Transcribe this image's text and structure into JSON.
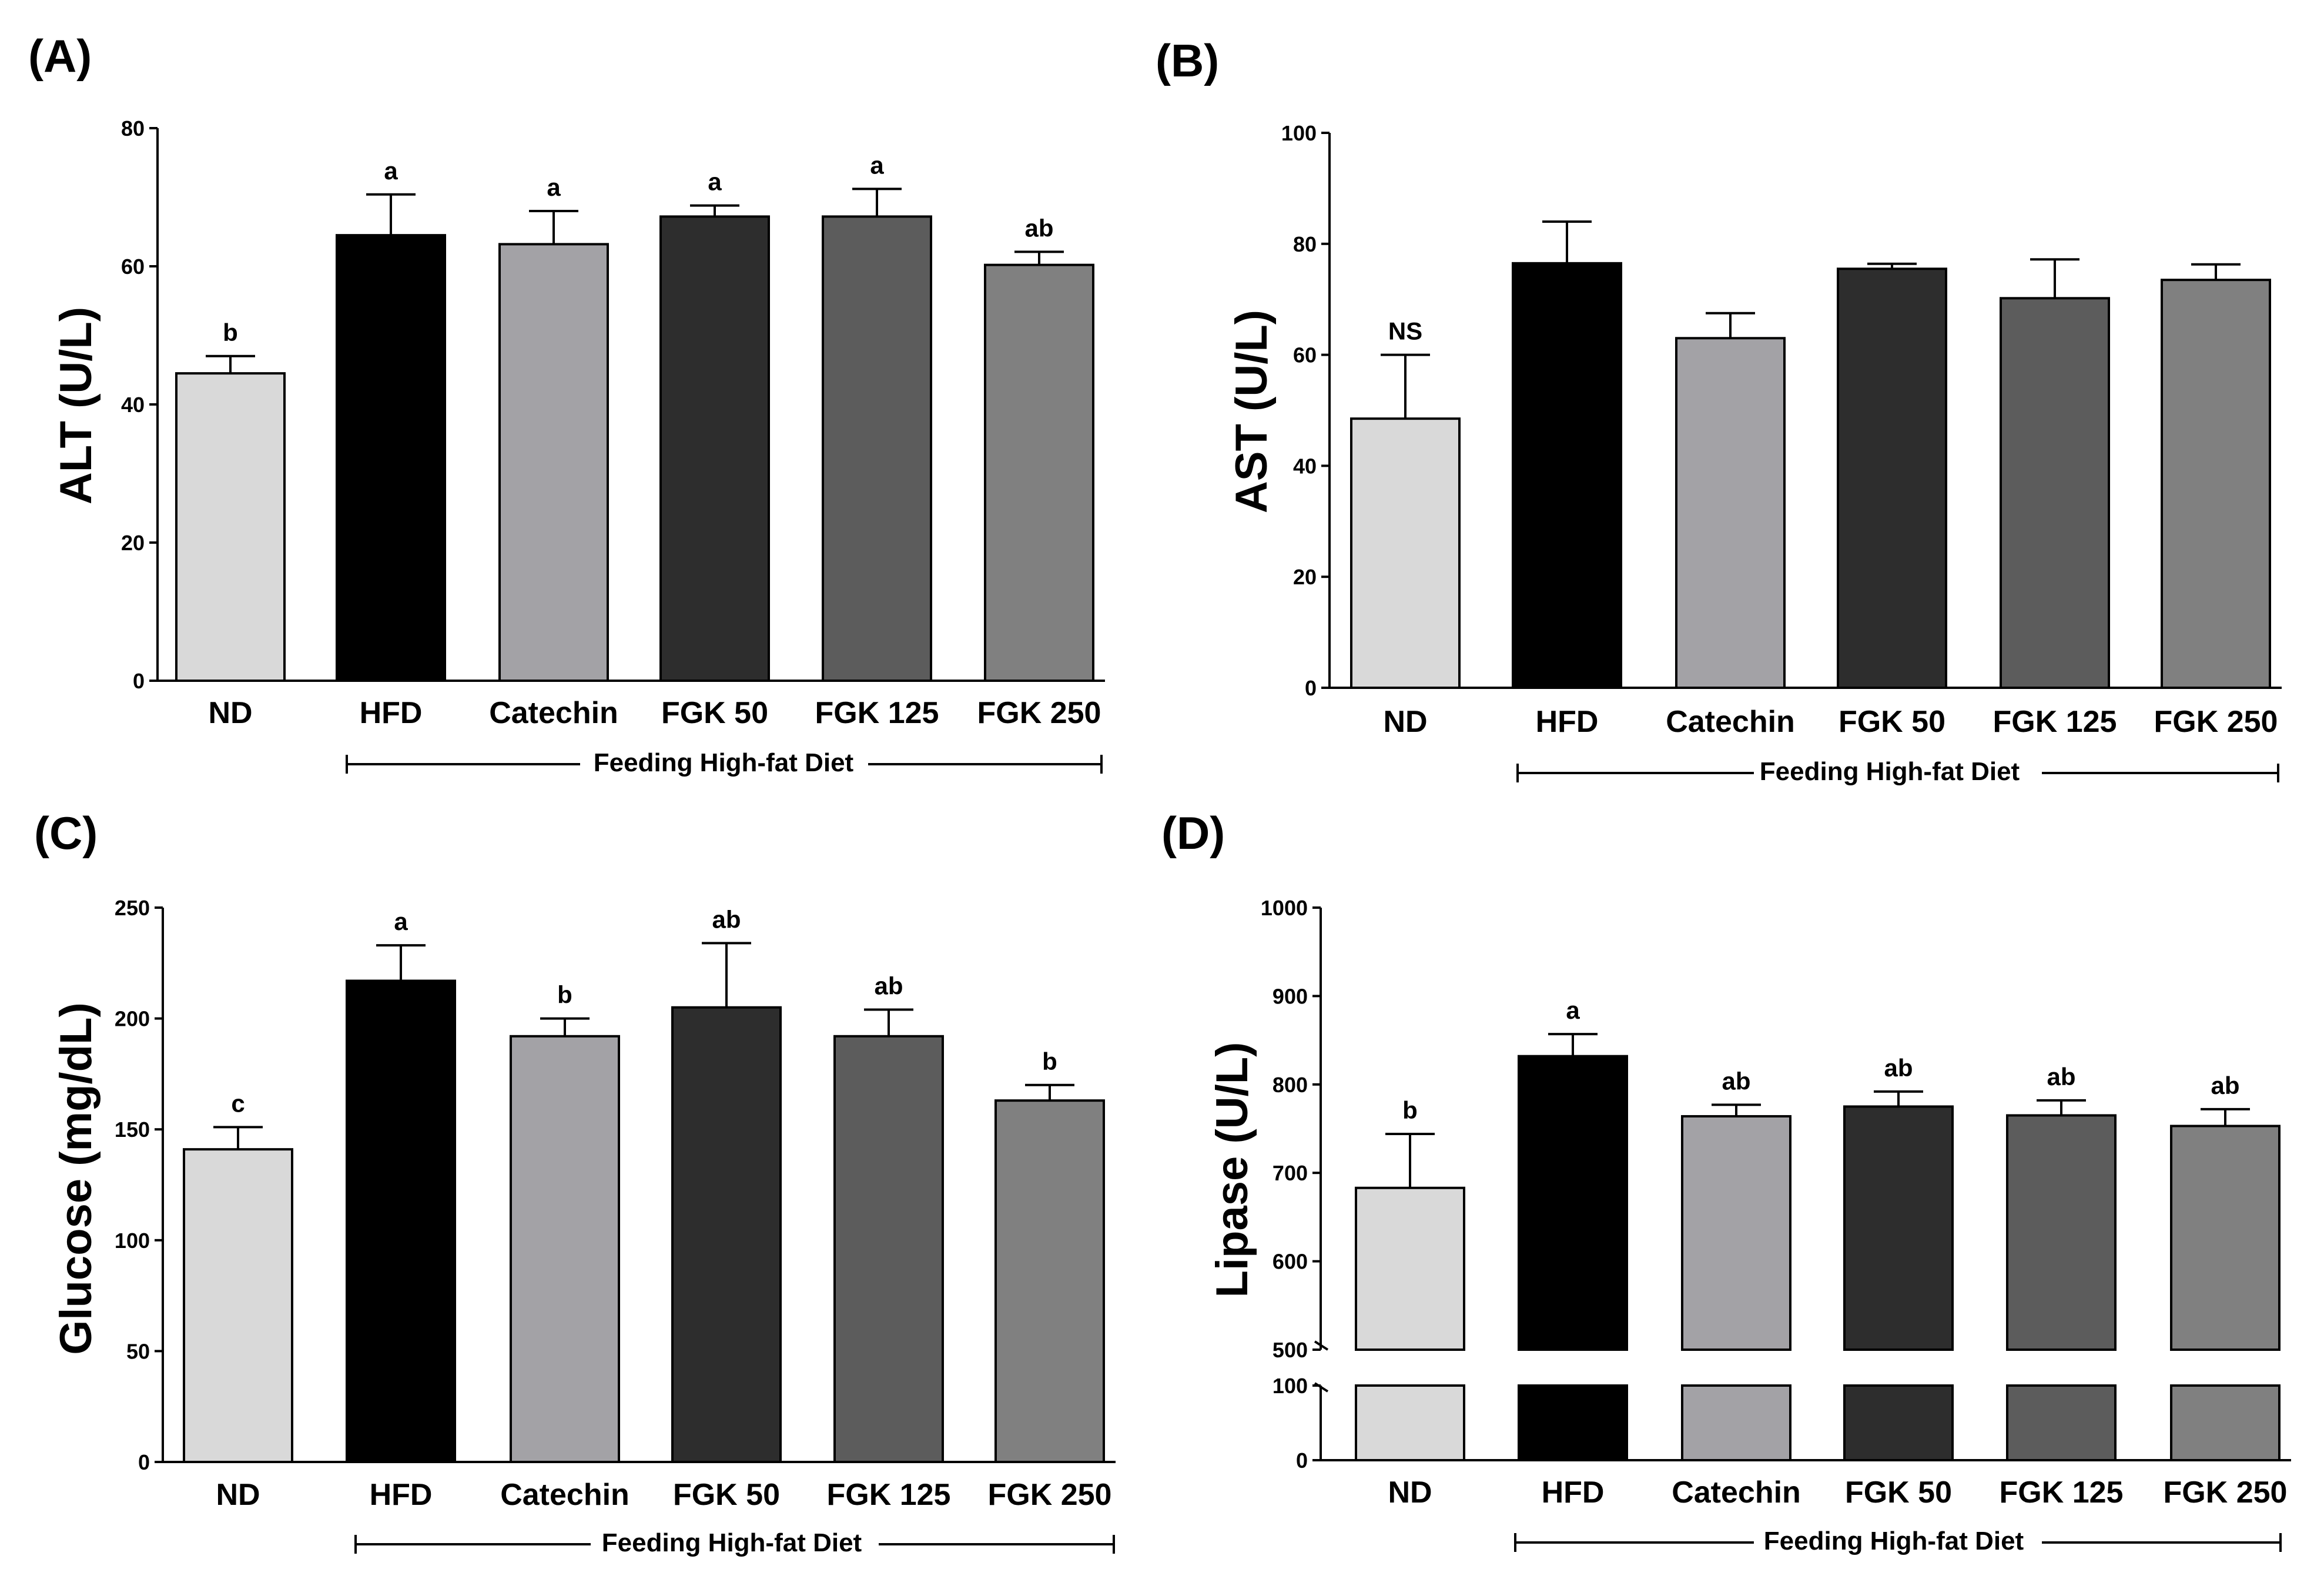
{
  "figure": {
    "title": ""
  },
  "bracket_label": "Feeding High-fat Diet",
  "bar_colors": [
    "#d9d9d9",
    "#000000",
    "#a3a2a6",
    "#2d2d2d",
    "#5c5c5c",
    "#808080"
  ],
  "chart_data": [
    {
      "panel": "(A)",
      "type": "bar",
      "categories": [
        "ND",
        "HFD",
        "Catechin",
        "FGK 50",
        "FGK 125",
        "FGK 250"
      ],
      "values": [
        44.5,
        64.5,
        63.2,
        67.2,
        67.2,
        60.2
      ],
      "errors": [
        2.5,
        5.9,
        4.8,
        1.6,
        4.0,
        1.9
      ],
      "significance": [
        "b",
        "a",
        "a",
        "a",
        "a",
        "ab"
      ],
      "ylabel": "ALT (U/L)",
      "xlabel": "",
      "ylim": [
        0,
        80
      ],
      "yticks": [
        "0",
        "20",
        "40",
        "60",
        "80"
      ],
      "bracket": {
        "from": "HFD",
        "to": "FGK 250",
        "label": "Feeding High-fat Diet"
      }
    },
    {
      "panel": "(B)",
      "type": "bar",
      "categories": [
        "ND",
        "HFD",
        "Catechin",
        "FGK 50",
        "FGK 125",
        "FGK 250"
      ],
      "values": [
        48.5,
        76.5,
        63.0,
        75.5,
        70.2,
        73.5
      ],
      "errors": [
        11.5,
        7.5,
        4.5,
        0.9,
        7.0,
        2.8
      ],
      "significance": [
        "NS",
        "",
        "",
        "",
        "",
        ""
      ],
      "ylabel": "AST (U/L)",
      "xlabel": "",
      "ylim": [
        0,
        100
      ],
      "yticks": [
        "0",
        "20",
        "40",
        "60",
        "80",
        "100"
      ],
      "bracket": {
        "from": "HFD",
        "to": "FGK 250",
        "label": "Feeding High-fat Diet"
      }
    },
    {
      "panel": "(C)",
      "type": "bar",
      "categories": [
        "ND",
        "HFD",
        "Catechin",
        "FGK 50",
        "FGK 125",
        "FGK 250"
      ],
      "values": [
        141,
        217,
        192,
        205,
        192,
        163
      ],
      "errors": [
        10,
        16,
        8,
        29,
        12,
        7
      ],
      "significance": [
        "c",
        "a",
        "b",
        "ab",
        "ab",
        "b"
      ],
      "ylabel": "Glucose (mg/dL)",
      "xlabel": "",
      "ylim": [
        0,
        250
      ],
      "yticks": [
        "0",
        "50",
        "100",
        "150",
        "200",
        "250"
      ],
      "bracket": {
        "from": "HFD",
        "to": "FGK 250",
        "label": "Feeding High-fat Diet"
      }
    },
    {
      "panel": "(D)",
      "type": "bar",
      "categories": [
        "ND",
        "HFD",
        "Catechin",
        "FGK 50",
        "FGK 125",
        "FGK 250"
      ],
      "values": [
        683,
        832,
        764,
        775,
        765,
        753
      ],
      "errors": [
        61,
        25,
        13,
        17,
        17,
        19
      ],
      "significance": [
        "b",
        "a",
        "ab",
        "ab",
        "ab",
        "ab"
      ],
      "ylabel": "Lipase (U/L)",
      "xlabel": "",
      "axis_break": {
        "lower": [
          0,
          100
        ],
        "upper": [
          500,
          1000
        ]
      },
      "yticks_lower": [
        "0",
        "100"
      ],
      "yticks_upper": [
        "500",
        "600",
        "700",
        "800",
        "900",
        "1000"
      ],
      "bracket": {
        "from": "HFD",
        "to": "FGK 250",
        "label": "Feeding High-fat Diet"
      }
    }
  ]
}
